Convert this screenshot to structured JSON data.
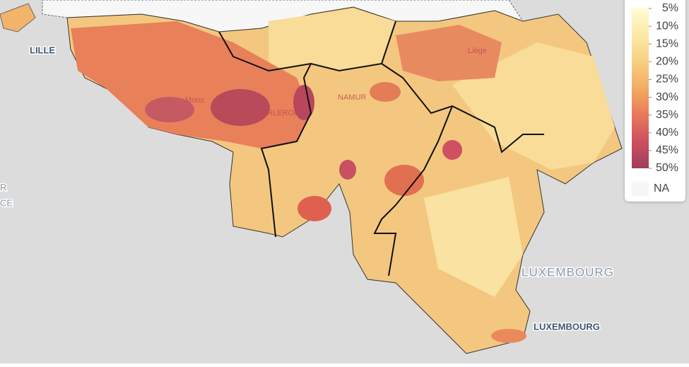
{
  "map": {
    "places": [
      "LILLE",
      "Mons",
      "CHARLEROI",
      "NAMUR",
      "Liège",
      "LUXEMBOURG",
      "LUXEMBOURG",
      "R",
      "CE"
    ],
    "legend": {
      "lim": [
        5,
        50
      ],
      "ticks": [
        {
          "value": 5,
          "label": "5%"
        },
        {
          "value": 10,
          "label": "10%"
        },
        {
          "value": 15,
          "label": "15%"
        },
        {
          "value": 20,
          "label": "20%"
        },
        {
          "value": 25,
          "label": "25%"
        },
        {
          "value": 30,
          "label": "30%"
        },
        {
          "value": 35,
          "label": "35%"
        },
        {
          "value": 40,
          "label": "40%"
        },
        {
          "value": 45,
          "label": "45%"
        },
        {
          "value": 50,
          "label": "50%"
        }
      ],
      "colors": [
        "#fffbd4",
        "#fde9a6",
        "#f8cf80",
        "#f2ab64",
        "#e8795a",
        "#cc5060",
        "#a03e5c"
      ],
      "na_label": "NA",
      "na_color": "#f7f7f7"
    }
  }
}
